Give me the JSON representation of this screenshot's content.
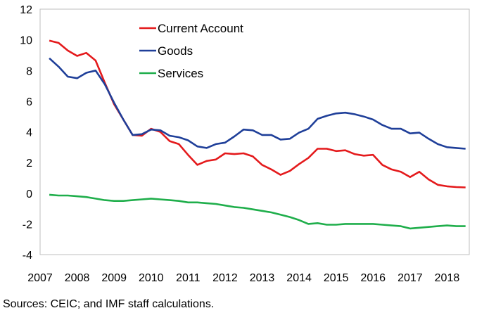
{
  "chart_data": {
    "type": "line",
    "title": "",
    "xlabel": "",
    "ylabel": "",
    "xlim": [
      2007,
      2018.6
    ],
    "ylim": [
      -4,
      12
    ],
    "yticks": [
      -4,
      -2,
      0,
      2,
      4,
      6,
      8,
      10,
      12
    ],
    "xticks": [
      "2007",
      "2008",
      "2009",
      "2010",
      "2011",
      "2012",
      "2013",
      "2014",
      "2015",
      "2016",
      "2017",
      "2018"
    ],
    "grid": false,
    "legend_position": "top-left",
    "series": [
      {
        "name": "Current Account",
        "color": "#e41a1c",
        "x": [
          2007.25,
          2007.5,
          2007.75,
          2008.0,
          2008.25,
          2008.5,
          2008.75,
          2009.0,
          2009.25,
          2009.5,
          2009.75,
          2010.0,
          2010.25,
          2010.5,
          2010.75,
          2011.0,
          2011.25,
          2011.5,
          2011.75,
          2012.0,
          2012.25,
          2012.5,
          2012.75,
          2013.0,
          2013.25,
          2013.5,
          2013.75,
          2014.0,
          2014.25,
          2014.5,
          2014.75,
          2015.0,
          2015.25,
          2015.5,
          2015.75,
          2016.0,
          2016.25,
          2016.5,
          2016.75,
          2017.0,
          2017.25,
          2017.5,
          2017.75,
          2018.0,
          2018.25,
          2018.5
        ],
        "values": [
          9.95,
          9.8,
          9.3,
          8.95,
          9.15,
          8.65,
          7.2,
          5.8,
          4.8,
          3.8,
          3.75,
          4.2,
          4.0,
          3.4,
          3.2,
          2.5,
          1.85,
          2.1,
          2.2,
          2.6,
          2.55,
          2.6,
          2.4,
          1.85,
          1.55,
          1.2,
          1.45,
          1.9,
          2.3,
          2.9,
          2.9,
          2.75,
          2.8,
          2.55,
          2.45,
          2.5,
          1.85,
          1.55,
          1.4,
          1.05,
          1.4,
          0.9,
          0.55,
          0.45,
          0.4,
          0.38
        ]
      },
      {
        "name": "Goods",
        "color": "#1f3f99",
        "x": [
          2007.25,
          2007.5,
          2007.75,
          2008.0,
          2008.25,
          2008.5,
          2008.75,
          2009.0,
          2009.25,
          2009.5,
          2009.75,
          2010.0,
          2010.25,
          2010.5,
          2010.75,
          2011.0,
          2011.25,
          2011.5,
          2011.75,
          2012.0,
          2012.25,
          2012.5,
          2012.75,
          2013.0,
          2013.25,
          2013.5,
          2013.75,
          2014.0,
          2014.25,
          2014.5,
          2014.75,
          2015.0,
          2015.25,
          2015.5,
          2015.75,
          2016.0,
          2016.25,
          2016.5,
          2016.75,
          2017.0,
          2017.25,
          2017.5,
          2017.75,
          2018.0,
          2018.25,
          2018.5
        ],
        "values": [
          8.8,
          8.25,
          7.6,
          7.5,
          7.85,
          8.0,
          7.1,
          5.9,
          4.8,
          3.8,
          3.85,
          4.15,
          4.1,
          3.75,
          3.65,
          3.45,
          3.05,
          2.95,
          3.2,
          3.3,
          3.7,
          4.15,
          4.1,
          3.8,
          3.8,
          3.5,
          3.55,
          3.95,
          4.2,
          4.85,
          5.05,
          5.2,
          5.25,
          5.15,
          5.0,
          4.8,
          4.45,
          4.2,
          4.2,
          3.9,
          3.95,
          3.55,
          3.2,
          3.0,
          2.95,
          2.9
        ]
      },
      {
        "name": "Services",
        "color": "#1fae4b",
        "x": [
          2007.25,
          2007.5,
          2007.75,
          2008.0,
          2008.25,
          2008.5,
          2008.75,
          2009.0,
          2009.25,
          2009.5,
          2009.75,
          2010.0,
          2010.25,
          2010.5,
          2010.75,
          2011.0,
          2011.25,
          2011.5,
          2011.75,
          2012.0,
          2012.25,
          2012.5,
          2012.75,
          2013.0,
          2013.25,
          2013.5,
          2013.75,
          2014.0,
          2014.25,
          2014.5,
          2014.75,
          2015.0,
          2015.25,
          2015.5,
          2015.75,
          2016.0,
          2016.25,
          2016.5,
          2016.75,
          2017.0,
          2017.25,
          2017.5,
          2017.75,
          2018.0,
          2018.25,
          2018.5
        ],
        "values": [
          -0.1,
          -0.15,
          -0.15,
          -0.2,
          -0.25,
          -0.35,
          -0.45,
          -0.5,
          -0.5,
          -0.45,
          -0.4,
          -0.35,
          -0.4,
          -0.45,
          -0.5,
          -0.6,
          -0.6,
          -0.65,
          -0.7,
          -0.8,
          -0.9,
          -0.95,
          -1.05,
          -1.15,
          -1.25,
          -1.4,
          -1.55,
          -1.75,
          -2.0,
          -1.95,
          -2.05,
          -2.05,
          -2.0,
          -2.0,
          -2.0,
          -2.0,
          -2.05,
          -2.1,
          -2.15,
          -2.3,
          -2.25,
          -2.2,
          -2.15,
          -2.1,
          -2.15,
          -2.15
        ]
      }
    ]
  },
  "footer": {
    "source": "Sources: CEIC; and IMF staff calculations."
  }
}
